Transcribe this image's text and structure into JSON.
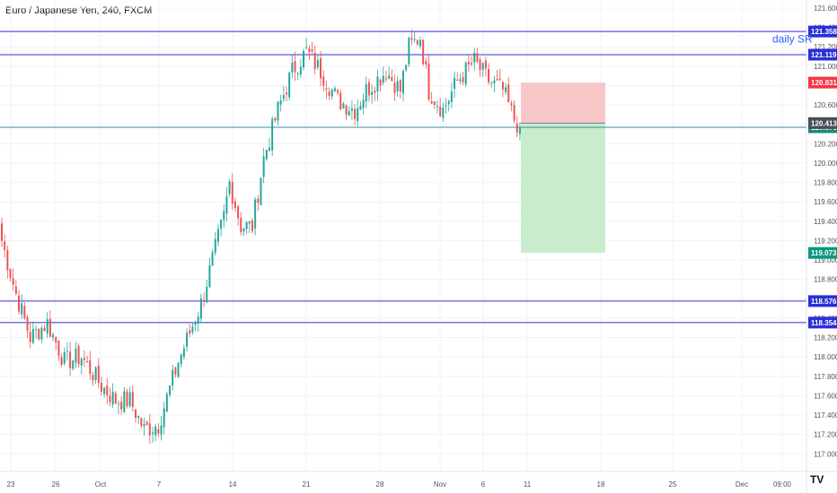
{
  "header": {
    "title": "Euro / Japanese Yen, 240, FXCM"
  },
  "watermark": {
    "label": "TV"
  },
  "colors": {
    "up": "#26a69a",
    "down": "#ef5350",
    "sr_line": "#2a2fd6",
    "price_line": "#2f8f9d",
    "stop_zone": "#f8c7c7",
    "target_zone": "#c9edcc",
    "grid": "#f0f3fa"
  },
  "chart_data": {
    "type": "candlestick",
    "title": "Euro / Japanese Yen, 240, FXCM",
    "ylim": [
      116.85,
      121.75
    ],
    "y_ticks": [
      121.6,
      121.4,
      121.2,
      121.0,
      120.8,
      120.6,
      120.4,
      120.2,
      120.0,
      119.8,
      119.6,
      119.4,
      119.2,
      119.0,
      118.8,
      118.6,
      118.4,
      118.2,
      118.0,
      117.8,
      117.6,
      117.4,
      117.2,
      117.0
    ],
    "x_ticks": [
      "23",
      "26",
      "Oct",
      "7",
      "14",
      "21",
      "28",
      "Nov",
      "6",
      "11",
      "18",
      "25",
      "Dec",
      "09:00"
    ],
    "grid": true,
    "horizontal_lines": [
      {
        "name": "daily SR",
        "value": 121.358,
        "label": "121.358",
        "color": "#2a2fd6"
      },
      {
        "value": 121.119,
        "label": "121.119",
        "color": "#2a2fd6"
      },
      {
        "value": 118.576,
        "label": "118.576",
        "color": "#2a2fd6"
      },
      {
        "value": 118.354,
        "label": "118.354",
        "color": "#2a2fd6"
      },
      {
        "value": 120.37,
        "label": "120.370",
        "color": "#2f8f9d"
      }
    ],
    "annotations": [
      {
        "text": "daily SR",
        "value": 121.28
      }
    ],
    "short_position": {
      "entry": 120.413,
      "stop": 120.831,
      "target": 119.073,
      "entry_label": "120.413",
      "stop_label": "120.831",
      "target_label": "119.073"
    },
    "anchors": [
      [
        0,
        119.2
      ],
      [
        5,
        118.65
      ],
      [
        10,
        118.2
      ],
      [
        16,
        118.35
      ],
      [
        22,
        117.95
      ],
      [
        28,
        118.0
      ],
      [
        35,
        117.7
      ],
      [
        40,
        117.55
      ],
      [
        45,
        117.55
      ],
      [
        50,
        117.25
      ],
      [
        55,
        117.3
      ],
      [
        62,
        117.95
      ],
      [
        70,
        118.55
      ],
      [
        78,
        119.45
      ],
      [
        80,
        119.8
      ],
      [
        84,
        119.35
      ],
      [
        88,
        119.35
      ],
      [
        92,
        120.05
      ],
      [
        97,
        120.55
      ],
      [
        102,
        120.95
      ],
      [
        107,
        121.15
      ],
      [
        112,
        120.95
      ],
      [
        118,
        120.65
      ],
      [
        124,
        120.55
      ],
      [
        128,
        120.75
      ],
      [
        135,
        120.95
      ],
      [
        140,
        120.75
      ],
      [
        143,
        121.2
      ],
      [
        147,
        121.3
      ],
      [
        150,
        120.75
      ],
      [
        155,
        120.55
      ],
      [
        160,
        120.85
      ],
      [
        166,
        121.05
      ],
      [
        171,
        120.85
      ],
      [
        176,
        120.75
      ],
      [
        180,
        120.45
      ],
      [
        182,
        120.37
      ]
    ]
  }
}
